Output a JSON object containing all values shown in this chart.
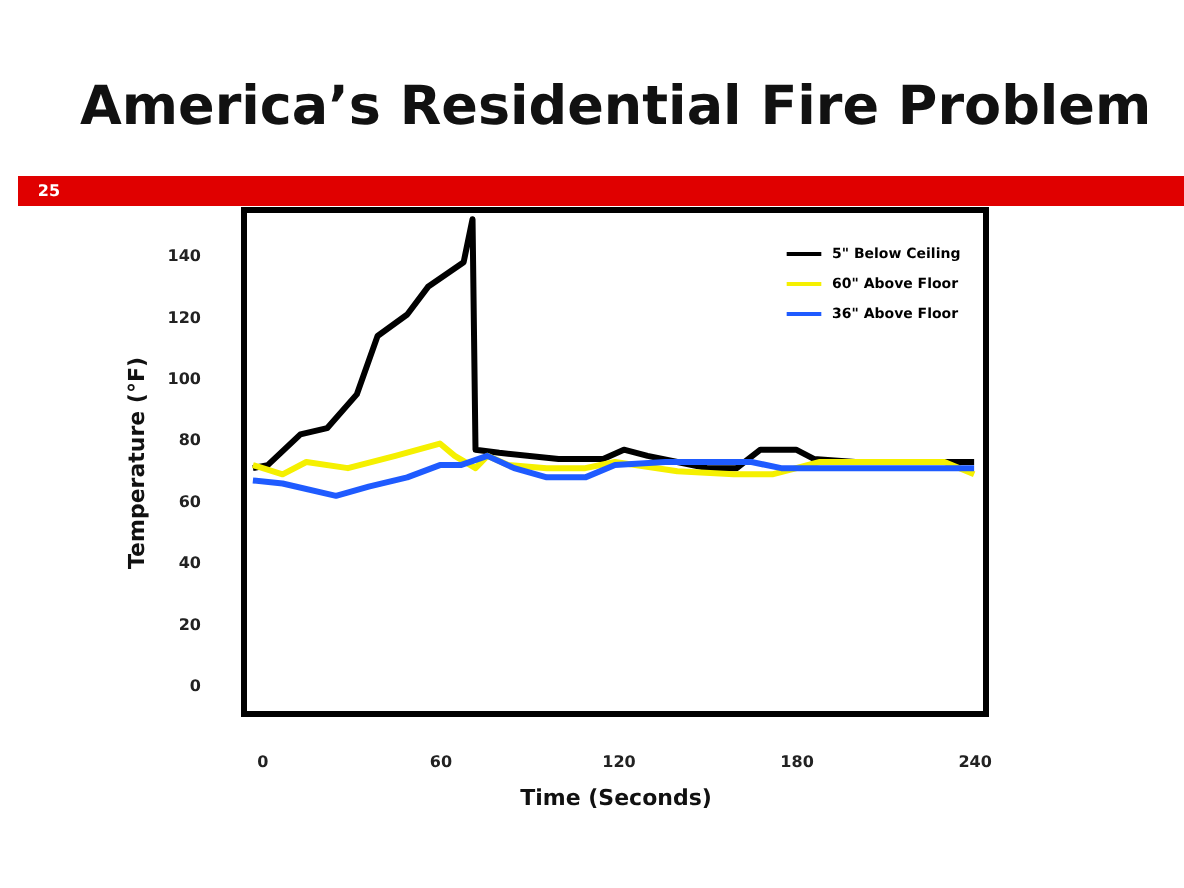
{
  "chart_data": {
    "type": "line",
    "title": "America’s Residential Fire Problem",
    "xlabel": "Time (Seconds)",
    "ylabel": "Temperature (°F)",
    "annotations": [
      "25"
    ],
    "xlim": [
      -6,
      244
    ],
    "ylim": [
      -9,
      155
    ],
    "xticks": [
      0,
      60,
      120,
      180,
      240
    ],
    "yticks": [
      0,
      20,
      40,
      60,
      80,
      100,
      120,
      140
    ],
    "grid": false,
    "legend": "top right",
    "line_style": "solid",
    "marker": "none",
    "series": [
      {
        "name": "5\" Below Ceiling",
        "color": "#000000",
        "x": [
          -3,
          2,
          13,
          22,
          32,
          39,
          49,
          56,
          68,
          71,
          72,
          80,
          100,
          115,
          122,
          130,
          140,
          150,
          160,
          168,
          180,
          186,
          200,
          240
        ],
        "values": [
          71,
          72,
          82,
          84,
          95,
          114,
          121,
          130,
          138,
          152,
          77,
          76,
          74,
          74,
          77,
          75,
          73,
          71,
          71,
          77,
          77,
          74,
          73,
          73
        ]
      },
      {
        "name": "60\" Above Floor",
        "color": "#f5f000",
        "x": [
          -3,
          7,
          15,
          29,
          45,
          60,
          65,
          72,
          76,
          83,
          96,
          109,
          119,
          140,
          159,
          172,
          188,
          230,
          240
        ],
        "values": [
          72,
          69,
          73,
          71,
          75,
          79,
          75,
          71,
          75,
          72,
          71,
          71,
          73,
          70,
          69,
          69,
          73,
          73,
          69
        ]
      },
      {
        "name": "36\" Above Floor",
        "color": "#1f5bff",
        "x": [
          -3,
          7,
          25,
          36,
          49,
          60,
          67,
          76,
          85,
          96,
          109,
          119,
          136,
          165,
          175,
          240
        ],
        "values": [
          67,
          66,
          62,
          65,
          68,
          72,
          72,
          75,
          71,
          68,
          68,
          72,
          73,
          73,
          71,
          71
        ]
      }
    ]
  }
}
